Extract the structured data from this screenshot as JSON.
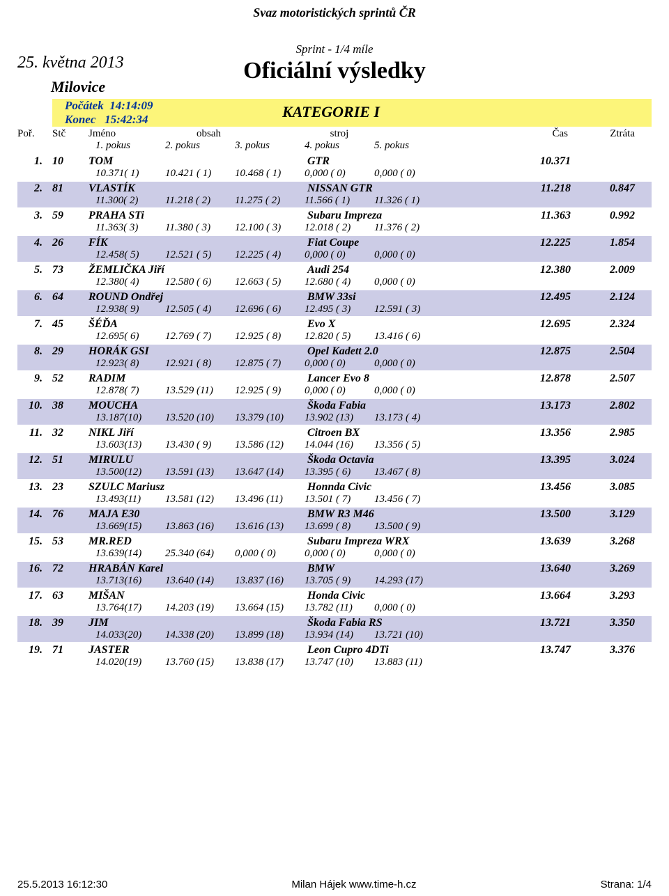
{
  "header": {
    "org": "Svaz motoristických sprintů ČR",
    "sprint": "Sprint - 1/4 míle",
    "title": "Oficiální výsledky",
    "date": "25. května 2013",
    "place": "Milovice"
  },
  "category": {
    "start_label": "Počátek",
    "start_time": "14:14:09",
    "end_label": "Konec",
    "end_time": "15:42:34",
    "name": "KATEGORIE I"
  },
  "columns": {
    "pos": "Poř.",
    "num": "Stč",
    "name": "Jméno",
    "obsah": "obsah",
    "stroj": "stroj",
    "cas": "Čas",
    "ztrata": "Ztráta",
    "p1": "1. pokus",
    "p2": "2. pokus",
    "p3": "3. pokus",
    "p4": "4. pokus",
    "p5": "5. pokus"
  },
  "footer": {
    "left": "25.5.2013 16:12:30",
    "center": "Milan Hájek    www.time-h.cz",
    "right": "Strana: 1/4"
  },
  "colors": {
    "alt_row": "#cccce6",
    "catbar": "#fcf57a",
    "cat_text": "#003399",
    "background": "#ffffff"
  },
  "entries": [
    {
      "pos": "1.",
      "num": "10",
      "name": "TOM",
      "car": "GTR",
      "time": "10.371",
      "gap": "",
      "runs": [
        "10.371( 1)",
        "10.421 ( 1)",
        "10.468 ( 1)",
        "0,000 ( 0)",
        "0,000 ( 0)"
      ]
    },
    {
      "pos": "2.",
      "num": "81",
      "name": "VLASTÍK",
      "car": "NISSAN GTR",
      "time": "11.218",
      "gap": "0.847",
      "runs": [
        "11.300( 2)",
        "11.218 ( 2)",
        "11.275 ( 2)",
        "11.566 ( 1)",
        "11.326 ( 1)"
      ]
    },
    {
      "pos": "3.",
      "num": "59",
      "name": "PRAHA STi",
      "car": "Subaru Impreza",
      "time": "11.363",
      "gap": "0.992",
      "runs": [
        "11.363( 3)",
        "11.380 ( 3)",
        "12.100 ( 3)",
        "12.018 ( 2)",
        "11.376 ( 2)"
      ]
    },
    {
      "pos": "4.",
      "num": "26",
      "name": "FÍK",
      "car": "Fiat Coupe",
      "time": "12.225",
      "gap": "1.854",
      "runs": [
        "12.458( 5)",
        "12.521 ( 5)",
        "12.225 ( 4)",
        "0,000 ( 0)",
        "0,000 ( 0)"
      ]
    },
    {
      "pos": "5.",
      "num": "73",
      "name": "ŽEMLIČKA Jiří",
      "car": "Audi 254",
      "time": "12.380",
      "gap": "2.009",
      "runs": [
        "12.380( 4)",
        "12.580 ( 6)",
        "12.663 ( 5)",
        "12.680 ( 4)",
        "0,000 ( 0)"
      ]
    },
    {
      "pos": "6.",
      "num": "64",
      "name": "ROUND Ondřej",
      "car": "BMW 33si",
      "time": "12.495",
      "gap": "2.124",
      "runs": [
        "12.938( 9)",
        "12.505 ( 4)",
        "12.696 ( 6)",
        "12.495 ( 3)",
        "12.591 ( 3)"
      ]
    },
    {
      "pos": "7.",
      "num": "45",
      "name": "ŠÉĎA",
      "car": "Evo X",
      "time": "12.695",
      "gap": "2.324",
      "runs": [
        "12.695( 6)",
        "12.769 ( 7)",
        "12.925 ( 8)",
        "12.820 ( 5)",
        "13.416 ( 6)"
      ]
    },
    {
      "pos": "8.",
      "num": "29",
      "name": "HORÁK GSI",
      "car": "Opel Kadett 2.0",
      "time": "12.875",
      "gap": "2.504",
      "runs": [
        "12.923( 8)",
        "12.921 ( 8)",
        "12.875 ( 7)",
        "0,000 ( 0)",
        "0,000 ( 0)"
      ]
    },
    {
      "pos": "9.",
      "num": "52",
      "name": "RADIM",
      "car": "Lancer Evo 8",
      "time": "12.878",
      "gap": "2.507",
      "runs": [
        "12.878( 7)",
        "13.529 (11)",
        "12.925 ( 9)",
        "0,000 ( 0)",
        "0,000 ( 0)"
      ]
    },
    {
      "pos": "10.",
      "num": "38",
      "name": "MOUCHA",
      "car": "Škoda Fabia",
      "time": "13.173",
      "gap": "2.802",
      "runs": [
        "13.187(10)",
        "13.520 (10)",
        "13.379 (10)",
        "13.902 (13)",
        "13.173 ( 4)"
      ]
    },
    {
      "pos": "11.",
      "num": "32",
      "name": "NIKL Jiří",
      "car": "Citroen BX",
      "time": "13.356",
      "gap": "2.985",
      "runs": [
        "13.603(13)",
        "13.430 ( 9)",
        "13.586 (12)",
        "14.044 (16)",
        "13.356 ( 5)"
      ]
    },
    {
      "pos": "12.",
      "num": "51",
      "name": "MIRULU",
      "car": "Škoda Octavia",
      "time": "13.395",
      "gap": "3.024",
      "runs": [
        "13.500(12)",
        "13.591 (13)",
        "13.647 (14)",
        "13.395 ( 6)",
        "13.467 ( 8)"
      ]
    },
    {
      "pos": "13.",
      "num": "23",
      "name": "SZULC Mariusz",
      "car": "Honnda Civic",
      "time": "13.456",
      "gap": "3.085",
      "runs": [
        "13.493(11)",
        "13.581 (12)",
        "13.496 (11)",
        "13.501 ( 7)",
        "13.456 ( 7)"
      ]
    },
    {
      "pos": "14.",
      "num": "76",
      "name": "MAJA E30",
      "car": "BMW R3 M46",
      "time": "13.500",
      "gap": "3.129",
      "runs": [
        "13.669(15)",
        "13.863 (16)",
        "13.616 (13)",
        "13.699 ( 8)",
        "13.500 ( 9)"
      ]
    },
    {
      "pos": "15.",
      "num": "53",
      "name": "MR.RED",
      "car": "Subaru Impreza WRX",
      "time": "13.639",
      "gap": "3.268",
      "runs": [
        "13.639(14)",
        "25.340 (64)",
        "0,000 ( 0)",
        "0,000 ( 0)",
        "0,000 ( 0)"
      ]
    },
    {
      "pos": "16.",
      "num": "72",
      "name": "HRABÁN Karel",
      "car": "BMW",
      "time": "13.640",
      "gap": "3.269",
      "runs": [
        "13.713(16)",
        "13.640 (14)",
        "13.837 (16)",
        "13.705 ( 9)",
        "14.293 (17)"
      ]
    },
    {
      "pos": "17.",
      "num": "63",
      "name": "MIŠAN",
      "car": "Honda Civic",
      "time": "13.664",
      "gap": "3.293",
      "runs": [
        "13.764(17)",
        "14.203 (19)",
        "13.664 (15)",
        "13.782 (11)",
        "0,000 ( 0)"
      ]
    },
    {
      "pos": "18.",
      "num": "39",
      "name": "JIM",
      "car": "Škoda Fabia RS",
      "time": "13.721",
      "gap": "3.350",
      "runs": [
        "14.033(20)",
        "14.338 (20)",
        "13.899 (18)",
        "13.934 (14)",
        "13.721 (10)"
      ]
    },
    {
      "pos": "19.",
      "num": "71",
      "name": "JASTER",
      "car": "Leon Cupro 4DTi",
      "time": "13.747",
      "gap": "3.376",
      "runs": [
        "14.020(19)",
        "13.760 (15)",
        "13.838 (17)",
        "13.747 (10)",
        "13.883 (11)"
      ]
    }
  ]
}
